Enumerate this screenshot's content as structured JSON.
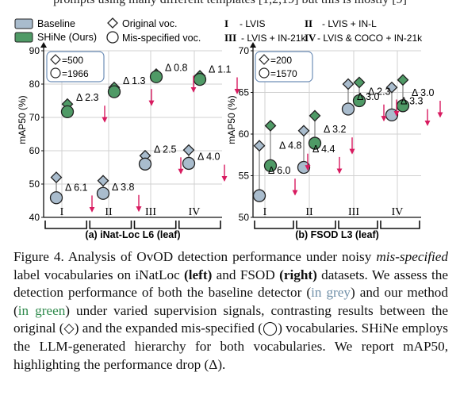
{
  "top_cut_text": "prompts using many different templates [1,2,19] but this is mostly [9]",
  "legend": {
    "baseline": "Baseline",
    "shine": "SHiNe (Ours)",
    "original": "Original voc.",
    "misspecified": "Mis-specified voc.",
    "codes": [
      {
        "code": "I",
        "desc": "- LVIS"
      },
      {
        "code": "II",
        "desc": "- LVIS + IN-L"
      },
      {
        "code": "III",
        "desc": "- LVIS + IN-21k"
      },
      {
        "code": "IV",
        "desc": "- LVIS & COCO + IN-21k"
      }
    ]
  },
  "colors": {
    "baseline_fill": "#a9bccd",
    "shine_fill": "#4f9a66",
    "arrow": "#d81b60",
    "grid": "#d0d0d0"
  },
  "chart_data": [
    {
      "type": "scatter",
      "title": "(a) iNat-Loc L6 (leaf)",
      "ylabel": "mAP50 (%)",
      "ylim": [
        40,
        90
      ],
      "yticks": [
        40,
        50,
        60,
        70,
        80,
        90
      ],
      "categories": [
        "I",
        "II",
        "III",
        "IV"
      ],
      "vocab_sizes": {
        "original": "=500",
        "misspecified": "=1966"
      },
      "series": [
        {
          "name": "Baseline",
          "vocab": "original",
          "values": [
            52.0,
            51.0,
            58.5,
            60.2
          ]
        },
        {
          "name": "Baseline",
          "vocab": "misspecified",
          "values": [
            45.9,
            47.2,
            56.0,
            56.2
          ]
        },
        {
          "name": "SHiNe (Ours)",
          "vocab": "original",
          "values": [
            74.0,
            79.0,
            83.0,
            82.5
          ]
        },
        {
          "name": "SHiNe (Ours)",
          "vocab": "misspecified",
          "values": [
            71.7,
            77.7,
            82.2,
            81.4
          ]
        }
      ],
      "annotations": [
        {
          "label": "Δ 6.1",
          "category": "I",
          "series": "Baseline"
        },
        {
          "label": "Δ 2.3",
          "category": "I",
          "series": "SHiNe (Ours)"
        },
        {
          "label": "Δ 3.8",
          "category": "II",
          "series": "Baseline"
        },
        {
          "label": "Δ 1.3",
          "category": "II",
          "series": "SHiNe (Ours)"
        },
        {
          "label": "Δ 2.5",
          "category": "III",
          "series": "Baseline"
        },
        {
          "label": "Δ 0.8",
          "category": "III",
          "series": "SHiNe (Ours)"
        },
        {
          "label": "Δ 4.0",
          "category": "IV",
          "series": "Baseline"
        },
        {
          "label": "Δ 1.1",
          "category": "IV",
          "series": "SHiNe (Ours)"
        }
      ]
    },
    {
      "type": "scatter",
      "title": "(b) FSOD L3 (leaf)",
      "ylabel": "mAP50 (%)",
      "ylim": [
        50,
        70
      ],
      "yticks": [
        50,
        55,
        60,
        65,
        70
      ],
      "categories": [
        "I",
        "II",
        "III",
        "IV"
      ],
      "vocab_sizes": {
        "original": "=200",
        "misspecified": "=1570"
      },
      "series": [
        {
          "name": "Baseline",
          "vocab": "original",
          "values": [
            58.6,
            60.4,
            66.0,
            65.6
          ]
        },
        {
          "name": "Baseline",
          "vocab": "misspecified",
          "values": [
            52.6,
            56.0,
            63.0,
            62.3
          ]
        },
        {
          "name": "SHiNe (Ours)",
          "vocab": "original",
          "values": [
            61.0,
            62.2,
            66.2,
            66.5
          ]
        },
        {
          "name": "SHiNe (Ours)",
          "vocab": "misspecified",
          "values": [
            56.2,
            58.9,
            64.0,
            63.4
          ]
        }
      ],
      "annotations": [
        {
          "label": "Δ 6.0",
          "category": "I",
          "series": "Baseline"
        },
        {
          "label": "Δ 4.8",
          "category": "I",
          "series": "SHiNe (Ours)"
        },
        {
          "label": "Δ 4.4",
          "category": "II",
          "series": "Baseline"
        },
        {
          "label": "Δ 3.2",
          "category": "II",
          "series": "SHiNe (Ours)"
        },
        {
          "label": "Δ 3.0",
          "category": "III",
          "series": "Baseline"
        },
        {
          "label": "Δ 2.3",
          "category": "III",
          "series": "SHiNe (Ours)"
        },
        {
          "label": "Δ 3.3",
          "category": "IV",
          "series": "Baseline"
        },
        {
          "label": "Δ 3.0",
          "category": "IV",
          "series": "SHiNe (Ours)"
        }
      ]
    }
  ],
  "caption": {
    "figure_label": "Figure 4.",
    "s1": " Analysis of OvOD detection performance under noisy ",
    "s1_italic": "mis-specified",
    "s2": " label vocabularies on iNatLoc ",
    "left_bold": "(left)",
    "s3": " and FSOD ",
    "right_bold": "(right)",
    "s4": " datasets. We assess the detection performance of both the baseline detector (",
    "in_grey": "in grey",
    "s5": ") and our method (",
    "in_green": "in green",
    "s6": ") under varied supervision signals, contrasting results between the original (",
    "diamond_glyph": "◇",
    "s7": ") and the expanded mis-specified (",
    "circle_glyph": "◯",
    "s8": ") vocabularies. SHiNe employs the LLM-generated hierarchy for both vocabularies. We report mAP50, highlighting the performance drop (Δ)."
  }
}
